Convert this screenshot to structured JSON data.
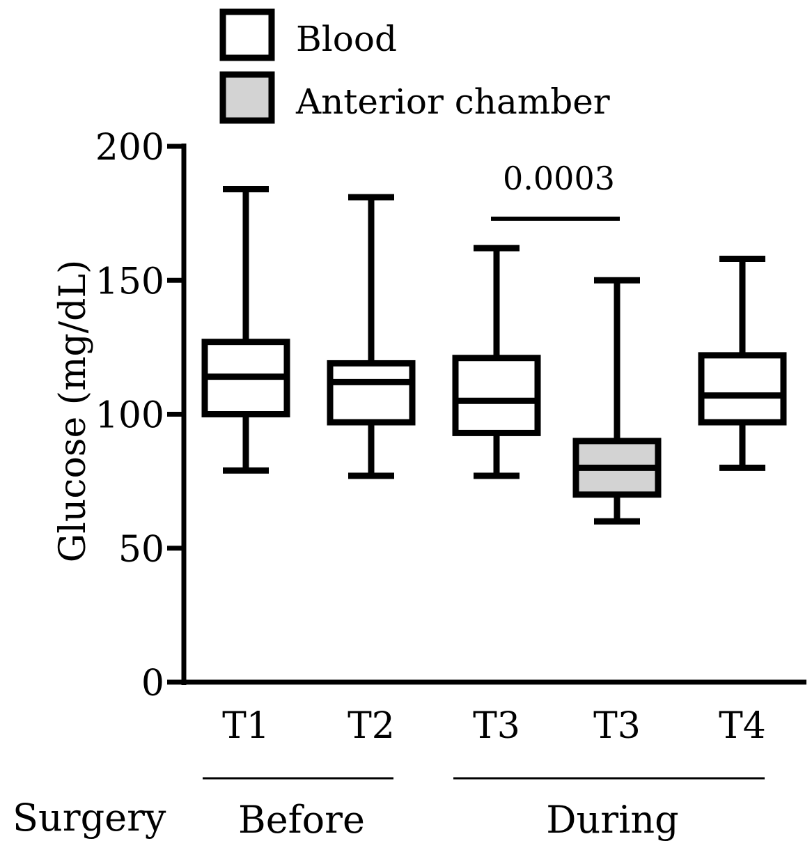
{
  "chart_data": {
    "type": "box",
    "ylabel": "Glucose (mg/dL)",
    "ylim": [
      0,
      200
    ],
    "yticks": [
      "0",
      "50",
      "100",
      "150",
      "200"
    ],
    "legend": {
      "placement": "top",
      "entries": [
        {
          "label": "Blood",
          "color": "#ffffff"
        },
        {
          "label": "Anterior chamber",
          "color": "#d3d3d3"
        }
      ]
    },
    "boxes": [
      {
        "category": "T1",
        "series": "Blood",
        "min": 79,
        "q1": 100,
        "median": 114,
        "q3": 127,
        "max": 184
      },
      {
        "category": "T2",
        "series": "Blood",
        "min": 77,
        "q1": 97,
        "median": 112,
        "q3": 119,
        "max": 181
      },
      {
        "category": "T3",
        "series": "Blood",
        "min": 77,
        "q1": 93,
        "median": 105,
        "q3": 121,
        "max": 162
      },
      {
        "category": "T3",
        "series": "Anterior chamber",
        "min": 60,
        "q1": 70,
        "median": 80,
        "q3": 90,
        "max": 150
      },
      {
        "category": "T4",
        "series": "Blood",
        "min": 80,
        "q1": 97,
        "median": 107,
        "q3": 122,
        "max": 158
      }
    ],
    "annotations": [
      {
        "text": "0.0003",
        "between": [
          2,
          3
        ],
        "y": 173
      }
    ],
    "groups": {
      "row_label": "Surgery",
      "items": [
        {
          "label": "Before",
          "boxes": [
            0,
            1
          ]
        },
        {
          "label": "During",
          "boxes": [
            2,
            4
          ]
        }
      ]
    }
  }
}
